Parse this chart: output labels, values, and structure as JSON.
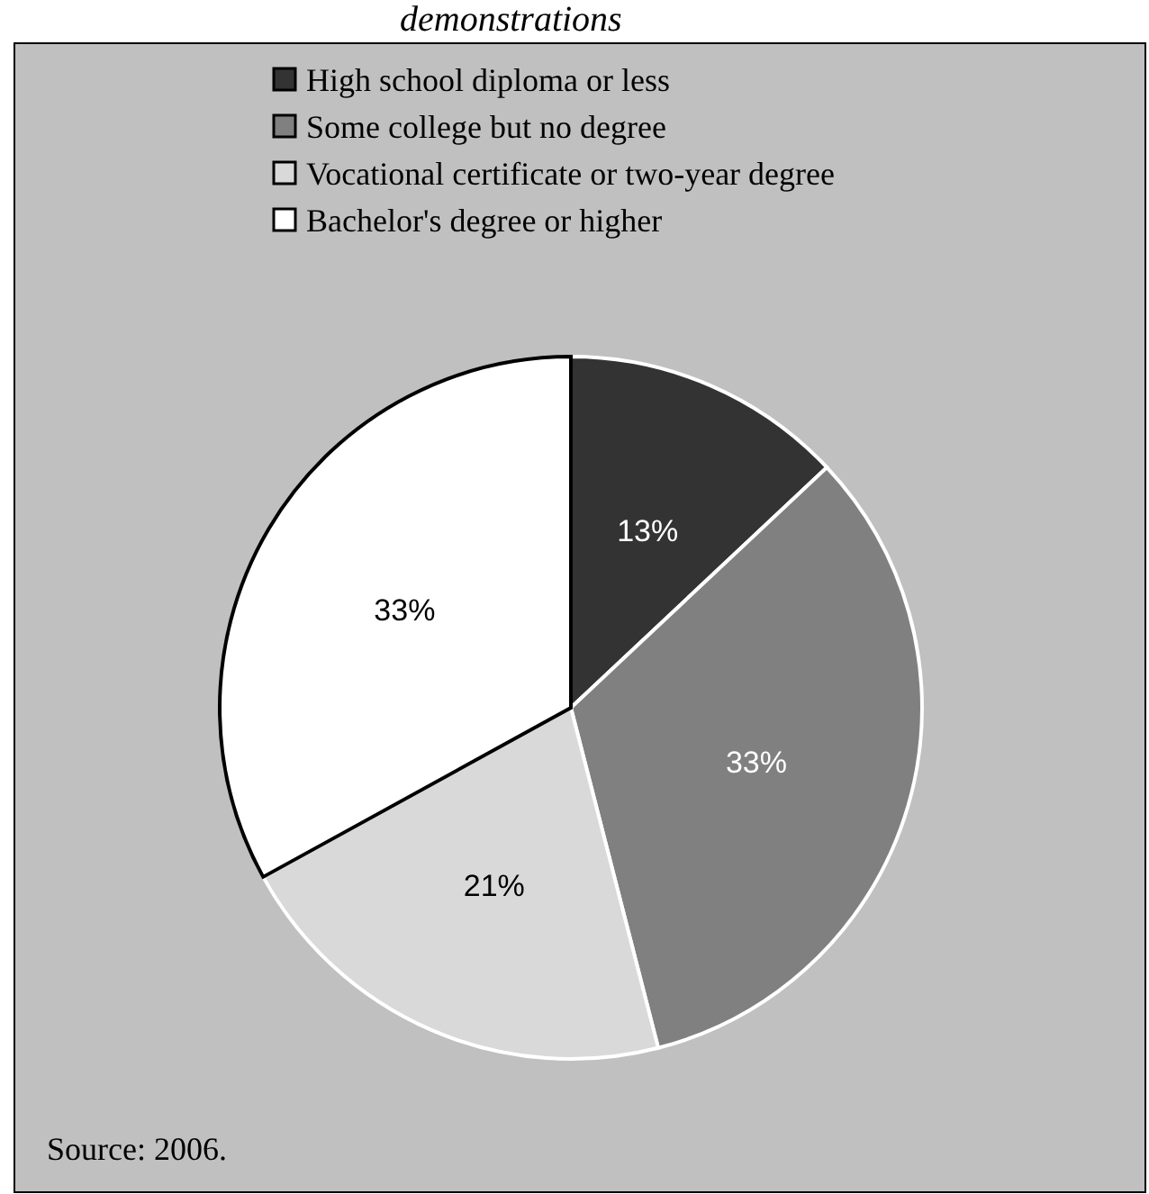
{
  "chart_data": {
    "type": "pie",
    "title": "demonstrations",
    "categories": [
      "High school diploma or less",
      "Some college but no degree",
      "Vocational certificate or two-year degree",
      "Bachelor's degree or higher"
    ],
    "values": [
      13,
      33,
      21,
      33
    ],
    "colors": [
      "#333333",
      "#808080",
      "#d9d9d9",
      "#ffffff"
    ],
    "value_labels": [
      "13%",
      "33%",
      "21%",
      "33%"
    ],
    "legend": "top",
    "annotations": [
      "Source: 2006."
    ]
  }
}
